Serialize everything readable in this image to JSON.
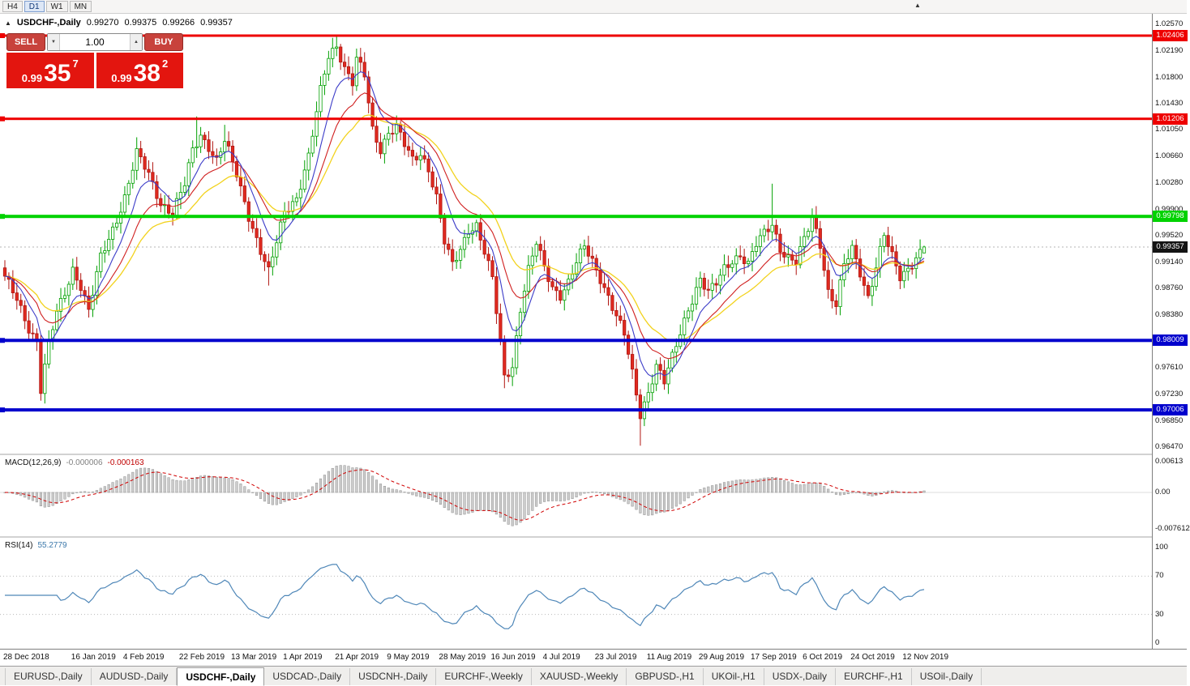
{
  "toolbar": {
    "timeframes": [
      {
        "label": "H4",
        "active": false
      },
      {
        "label": "D1",
        "active": true
      },
      {
        "label": "W1",
        "active": false
      },
      {
        "label": "MN",
        "active": false
      }
    ],
    "collapse_icon": "▲"
  },
  "chart": {
    "title_symbol": "USDCHF-,Daily",
    "title_icon": "▲",
    "ohlc": {
      "open": "0.99270",
      "high": "0.99375",
      "low": "0.99266",
      "close": "0.99357"
    },
    "order_panel": {
      "sell_label": "SELL",
      "buy_label": "BUY",
      "volume": "1.00",
      "spinner_down_icon": "▼",
      "spinner_up_icon": "▲",
      "sell_price": {
        "prefix": "0.99",
        "big": "35",
        "sup": "7"
      },
      "buy_price": {
        "prefix": "0.99",
        "big": "38",
        "sup": "2"
      },
      "button_color": "#c8423c",
      "price_box_color": "#e3150f"
    }
  },
  "macd_panel": {
    "name": "MACD(12,26,9)",
    "value_main": "-0.000006",
    "value_signal": "-0.000163",
    "axis_top": "0.00613",
    "axis_zero": "0.00",
    "axis_bottom": "-0.007612"
  },
  "rsi_panel": {
    "name": "RSI(14)",
    "value": "55.2779",
    "axis_labels": [
      100,
      70,
      30,
      0
    ]
  },
  "tab_bar": {
    "tabs": [
      {
        "label": "EURUSD-,Daily",
        "active": false
      },
      {
        "label": "AUDUSD-,Daily",
        "active": false
      },
      {
        "label": "USDCHF-,Daily",
        "active": true
      },
      {
        "label": "USDCAD-,Daily",
        "active": false
      },
      {
        "label": "USDCNH-,Daily",
        "active": false
      },
      {
        "label": "EURCHF-,Weekly",
        "active": false
      },
      {
        "label": "XAUUSD-,Weekly",
        "active": false
      },
      {
        "label": "GBPUSD-,H1",
        "active": false
      },
      {
        "label": "UKOil-,H1",
        "active": false
      },
      {
        "label": "USDX-,Daily",
        "active": false
      },
      {
        "label": "EURCHF-,H1",
        "active": false
      },
      {
        "label": "USOil-,Daily",
        "active": false
      }
    ]
  },
  "chart_data": {
    "type": "candlestick",
    "symbol": "USDCHF",
    "timeframe": "Daily",
    "candle_count": 231,
    "price_axis": {
      "max": 1.0257,
      "min": 0.9647,
      "labels": [
        "1.02570",
        "1.02190",
        "1.01800",
        "1.01430",
        "1.01050",
        "1.00660",
        "1.00280",
        "0.99900",
        "0.99520",
        "0.99140",
        "0.98760",
        "0.98380",
        "0.98000",
        "0.97610",
        "0.97230",
        "0.96850",
        "0.96470"
      ]
    },
    "h_lines": [
      {
        "price": 1.02406,
        "label": "1.02406",
        "color": "#ee0000",
        "thickness": 3
      },
      {
        "price": 1.01206,
        "label": "1.01206",
        "color": "#ee0000",
        "thickness": 3
      },
      {
        "price": 0.99798,
        "label": "0.99798",
        "color": "#00d200",
        "thickness": 4
      },
      {
        "price": 0.98009,
        "label": "0.98009",
        "color": "#0000cd",
        "thickness": 4
      },
      {
        "price": 0.97006,
        "label": "0.97006",
        "color": "#0000cd",
        "thickness": 4
      }
    ],
    "current_price": {
      "value": 0.99357,
      "label": "0.99357",
      "badge_color": "#141414"
    },
    "last_candle": {
      "o": 0.9927,
      "h": 0.99375,
      "l": 0.99266,
      "c": 0.99357
    },
    "close_anchors": [
      [
        0,
        0.989
      ],
      [
        3,
        0.986
      ],
      [
        6,
        0.982
      ],
      [
        8,
        0.98
      ],
      [
        9,
        0.973
      ],
      [
        11,
        0.9795
      ],
      [
        13,
        0.984
      ],
      [
        15,
        0.987
      ],
      [
        17,
        0.9905
      ],
      [
        19,
        0.988
      ],
      [
        21,
        0.9842
      ],
      [
        24,
        0.992
      ],
      [
        27,
        0.9962
      ],
      [
        30,
        1.0008
      ],
      [
        33,
        1.007
      ],
      [
        36,
        1.004
      ],
      [
        39,
        1.0
      ],
      [
        42,
        0.9985
      ],
      [
        45,
        1.0025
      ],
      [
        47,
        1.0075
      ],
      [
        49,
        1.0098
      ],
      [
        51,
        1.0082
      ],
      [
        53,
        1.006
      ],
      [
        55,
        1.0088
      ],
      [
        58,
        1.004
      ],
      [
        61,
        0.9982
      ],
      [
        64,
        0.993
      ],
      [
        66,
        0.9898
      ],
      [
        68,
        0.9942
      ],
      [
        70,
        0.9988
      ],
      [
        73,
        1.0008
      ],
      [
        76,
        1.0065
      ],
      [
        79,
        1.016
      ],
      [
        81,
        1.0212
      ],
      [
        83,
        1.0228
      ],
      [
        85,
        1.0195
      ],
      [
        87,
        1.0172
      ],
      [
        88,
        1.0205
      ],
      [
        90,
        1.0182
      ],
      [
        92,
        1.0105
      ],
      [
        94,
        1.0078
      ],
      [
        96,
        1.0102
      ],
      [
        98,
        1.0108
      ],
      [
        100,
        1.0082
      ],
      [
        102,
        1.006
      ],
      [
        104,
        1.0072
      ],
      [
        106,
        1.005
      ],
      [
        108,
        1.0008
      ],
      [
        110,
        0.9942
      ],
      [
        112,
        0.9908
      ],
      [
        114,
        0.9932
      ],
      [
        116,
        0.9962
      ],
      [
        118,
        0.9968
      ],
      [
        120,
        0.9928
      ],
      [
        122,
        0.9888
      ],
      [
        124,
        0.9795
      ],
      [
        125,
        0.9748
      ],
      [
        127,
        0.9765
      ],
      [
        129,
        0.9848
      ],
      [
        131,
        0.9902
      ],
      [
        133,
        0.994
      ],
      [
        135,
        0.9905
      ],
      [
        137,
        0.9878
      ],
      [
        139,
        0.9868
      ],
      [
        141,
        0.9885
      ],
      [
        143,
        0.9912
      ],
      [
        145,
        0.9935
      ],
      [
        147,
        0.9915
      ],
      [
        149,
        0.9892
      ],
      [
        151,
        0.9865
      ],
      [
        153,
        0.9835
      ],
      [
        155,
        0.9808
      ],
      [
        157,
        0.9752
      ],
      [
        159,
        0.9695
      ],
      [
        161,
        0.9728
      ],
      [
        163,
        0.9765
      ],
      [
        165,
        0.974
      ],
      [
        167,
        0.9775
      ],
      [
        169,
        0.9812
      ],
      [
        171,
        0.9848
      ],
      [
        174,
        0.989
      ],
      [
        176,
        0.9868
      ],
      [
        178,
        0.9882
      ],
      [
        180,
        0.9905
      ],
      [
        182,
        0.9918
      ],
      [
        184,
        0.9925
      ],
      [
        186,
        0.991
      ],
      [
        188,
        0.9938
      ],
      [
        190,
        0.9955
      ],
      [
        192,
        0.997
      ],
      [
        194,
        0.9935
      ],
      [
        196,
        0.992
      ],
      [
        198,
        0.9912
      ],
      [
        200,
        0.9945
      ],
      [
        202,
        0.9978
      ],
      [
        204,
        0.9942
      ],
      [
        206,
        0.9872
      ],
      [
        208,
        0.9852
      ],
      [
        210,
        0.9908
      ],
      [
        212,
        0.9932
      ],
      [
        214,
        0.99
      ],
      [
        216,
        0.9865
      ],
      [
        218,
        0.9908
      ],
      [
        220,
        0.9952
      ],
      [
        222,
        0.992
      ],
      [
        224,
        0.9892
      ],
      [
        226,
        0.9906
      ],
      [
        228,
        0.9922
      ],
      [
        230,
        0.99357
      ]
    ],
    "spikes": [
      {
        "i": 9,
        "l": 0.9714
      },
      {
        "i": 33,
        "h": 1.0094
      },
      {
        "i": 48,
        "h": 1.0124
      },
      {
        "i": 55,
        "h": 1.0112
      },
      {
        "i": 66,
        "l": 0.988
      },
      {
        "i": 83,
        "h": 1.0239
      },
      {
        "i": 88,
        "h": 1.0222
      },
      {
        "i": 98,
        "h": 1.0119
      },
      {
        "i": 125,
        "l": 0.9732
      },
      {
        "i": 159,
        "l": 0.9649
      },
      {
        "i": 192,
        "h": 1.0027
      },
      {
        "i": 202,
        "h": 0.9991
      }
    ],
    "date_labels": [
      {
        "i": 0,
        "t": "28 Dec 2018"
      },
      {
        "i": 17,
        "t": "16 Jan 2019"
      },
      {
        "i": 30,
        "t": "4 Feb 2019"
      },
      {
        "i": 44,
        "t": "22 Feb 2019"
      },
      {
        "i": 57,
        "t": "13 Mar 2019"
      },
      {
        "i": 70,
        "t": "1 Apr 2019"
      },
      {
        "i": 83,
        "t": "21 Apr 2019"
      },
      {
        "i": 96,
        "t": "9 May 2019"
      },
      {
        "i": 109,
        "t": "28 May 2019"
      },
      {
        "i": 122,
        "t": "16 Jun 2019"
      },
      {
        "i": 135,
        "t": "4 Jul 2019"
      },
      {
        "i": 148,
        "t": "23 Jul 2019"
      },
      {
        "i": 161,
        "t": "11 Aug 2019"
      },
      {
        "i": 174,
        "t": "29 Aug 2019"
      },
      {
        "i": 187,
        "t": "17 Sep 2019"
      },
      {
        "i": 200,
        "t": "6 Oct 2019"
      },
      {
        "i": 212,
        "t": "24 Oct 2019"
      },
      {
        "i": 225,
        "t": "12 Nov 2019"
      }
    ],
    "ma_periods": {
      "fast": 8,
      "mid": 16,
      "slow": 26
    },
    "macd_params": {
      "fast": 12,
      "slow": 26,
      "signal": 9
    },
    "rsi_period": 14,
    "colors": {
      "up_fill": "#ffffff",
      "up_border": "#00a000",
      "down_fill": "#e02a20",
      "down_border": "#b01510",
      "ma_fast": "#3c3cc8",
      "ma_mid": "#d02020",
      "ma_slow": "#f2d21c",
      "macd_hist_fill": "#cccccc",
      "macd_hist_border": "#909090",
      "macd_signal": "#d00000",
      "rsi": "#4f87b8",
      "current_price_dots": "#b4b4b4"
    }
  }
}
